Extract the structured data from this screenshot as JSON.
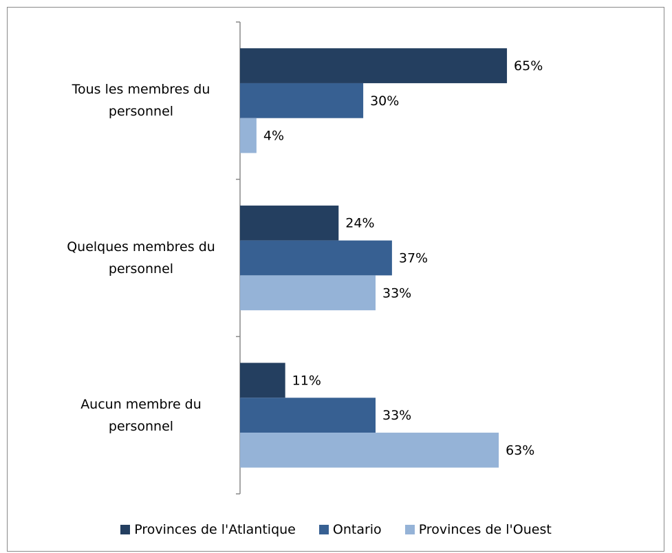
{
  "chart_data": {
    "type": "bar",
    "orientation": "horizontal",
    "categories": [
      "Tous les membres du personnel",
      "Quelques membres du personnel",
      "Aucun membre du personnel"
    ],
    "series": [
      {
        "name": "Provinces de l'Atlantique",
        "color": "#243f60",
        "values": [
          65,
          24,
          11
        ],
        "value_labels": [
          "65%",
          "24%",
          "11%"
        ]
      },
      {
        "name": "Ontario",
        "color": "#376092",
        "values": [
          30,
          37,
          33
        ],
        "value_labels": [
          "30%",
          "37%",
          "33%"
        ]
      },
      {
        "name": "Provinces de l'Ouest",
        "color": "#95b3d7",
        "values": [
          4,
          33,
          63
        ],
        "value_labels": [
          "4%",
          "33%",
          "63%"
        ]
      }
    ],
    "xlim": [
      0,
      100
    ],
    "legend": "bottom"
  }
}
